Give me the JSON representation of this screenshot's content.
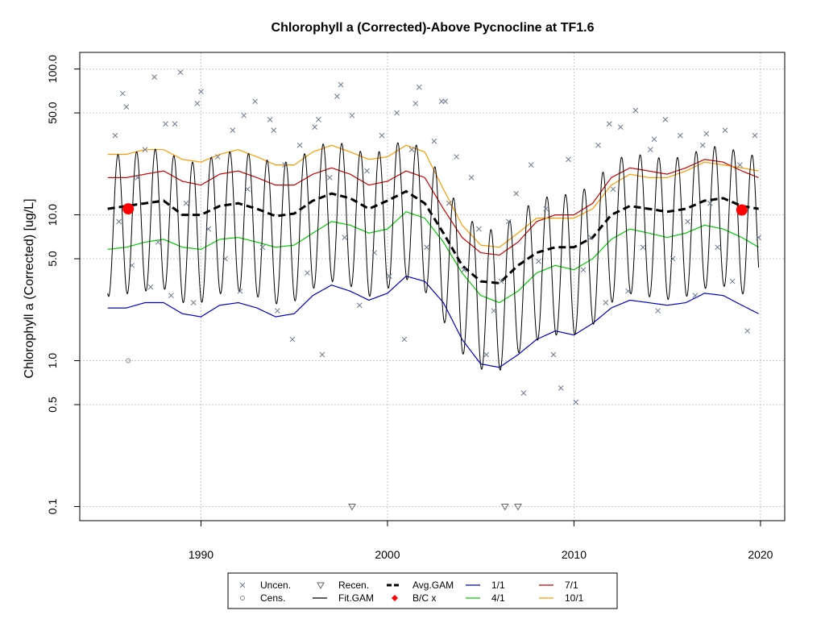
{
  "chart_data": {
    "type": "line",
    "title": "Chlorophyll a (Corrected)-Above Pycnocline at TF1.6",
    "xlabel": "",
    "ylabel": "Chlorophyll a (Corrected) [ug/L]",
    "y_scale": "log",
    "xlim": [
      1983.5,
      2021.3
    ],
    "ylim": [
      0.08,
      130
    ],
    "x_ticks": [
      {
        "value": 1990,
        "label": "1990"
      },
      {
        "value": 2000,
        "label": "2000"
      },
      {
        "value": 2010,
        "label": "2010"
      },
      {
        "value": 2020,
        "label": "2020"
      }
    ],
    "y_ticks": [
      {
        "value": 0.1,
        "label": "0.1"
      },
      {
        "value": 0.5,
        "label": "0.5"
      },
      {
        "value": 1.0,
        "label": "1.0"
      },
      {
        "value": 5.0,
        "label": "5.0"
      },
      {
        "value": 10.0,
        "label": "10.0"
      },
      {
        "value": 50.0,
        "label": "50.0"
      },
      {
        "value": 100.0,
        "label": "100.0"
      }
    ],
    "grid": true,
    "legend_position": "bottom",
    "series": [
      {
        "name": "Avg.GAM",
        "style": "dashed",
        "color": "#000000",
        "x": [
          1985,
          1986,
          1987,
          1988,
          1989,
          1990,
          1991,
          1992,
          1993,
          1994,
          1995,
          1996,
          1997,
          1998,
          1999,
          2000,
          2001,
          2002,
          2003,
          2004,
          2005,
          2006,
          2007,
          2008,
          2009,
          2010,
          2011,
          2012,
          2013,
          2014,
          2015,
          2016,
          2017,
          2018,
          2019,
          2019.9
        ],
        "y": [
          11,
          11.5,
          12,
          12.5,
          10,
          10,
          11.5,
          12,
          11,
          9.8,
          10.2,
          12.5,
          14,
          13,
          11,
          12.5,
          14.5,
          12,
          7.5,
          4.5,
          3.5,
          3.4,
          4.5,
          5.5,
          6,
          6,
          7,
          10,
          11.5,
          11,
          10.5,
          11,
          12.5,
          13,
          11.5,
          11
        ]
      },
      {
        "name": "1/1",
        "style": "solid",
        "color": "#0000cc",
        "x": [
          1985,
          1986,
          1987,
          1988,
          1989,
          1990,
          1991,
          1992,
          1993,
          1994,
          1995,
          1996,
          1997,
          1998,
          1999,
          2000,
          2001,
          2002,
          2003,
          2004,
          2005,
          2006,
          2007,
          2008,
          2009,
          2010,
          2011,
          2012,
          2013,
          2014,
          2015,
          2016,
          2017,
          2018,
          2019,
          2019.9
        ],
        "y": [
          2.3,
          2.3,
          2.5,
          2.5,
          2.1,
          2.0,
          2.4,
          2.5,
          2.3,
          2.0,
          2.1,
          2.8,
          3.3,
          3.0,
          2.6,
          2.9,
          3.8,
          3.5,
          2.5,
          1.4,
          0.95,
          0.9,
          1.1,
          1.4,
          1.6,
          1.5,
          1.8,
          2.3,
          2.6,
          2.5,
          2.4,
          2.5,
          2.9,
          2.8,
          2.4,
          2.1
        ]
      },
      {
        "name": "4/1",
        "style": "solid",
        "color": "#00cc00",
        "x": [
          1985,
          1986,
          1987,
          1988,
          1989,
          1990,
          1991,
          1992,
          1993,
          1994,
          1995,
          1996,
          1997,
          1998,
          1999,
          2000,
          2001,
          2002,
          2003,
          2004,
          2005,
          2006,
          2007,
          2008,
          2009,
          2010,
          2011,
          2012,
          2013,
          2014,
          2015,
          2016,
          2017,
          2018,
          2019,
          2019.9
        ],
        "y": [
          5.8,
          6.0,
          6.5,
          6.8,
          6.0,
          5.8,
          6.8,
          7.0,
          6.5,
          6.0,
          6.2,
          7.5,
          9.0,
          8.5,
          7.5,
          8.0,
          10.5,
          9.5,
          6.5,
          4.0,
          2.8,
          2.5,
          3.0,
          4.0,
          4.5,
          4.2,
          5.0,
          6.8,
          8.0,
          7.5,
          7.0,
          7.5,
          8.5,
          8.0,
          7.0,
          6.0
        ]
      },
      {
        "name": "7/1",
        "style": "solid",
        "color": "#cc0000",
        "x": [
          1985,
          1986,
          1987,
          1988,
          1989,
          1990,
          1991,
          1992,
          1993,
          1994,
          1995,
          1996,
          1997,
          1998,
          1999,
          2000,
          2001,
          2002,
          2003,
          2004,
          2005,
          2006,
          2007,
          2008,
          2009,
          2010,
          2011,
          2012,
          2013,
          2014,
          2015,
          2016,
          2017,
          2018,
          2019,
          2019.9
        ],
        "y": [
          18,
          18,
          19,
          20,
          17,
          16,
          19,
          20,
          18,
          16,
          16,
          19,
          21,
          19,
          16,
          17,
          20,
          18,
          11,
          7,
          5.5,
          5.3,
          6.5,
          9,
          10,
          10,
          12,
          18,
          21,
          20,
          19,
          21,
          24,
          23,
          20,
          18
        ]
      },
      {
        "name": "10/1",
        "style": "solid",
        "color": "#ff9900",
        "x": [
          1985,
          1986,
          1987,
          1988,
          1989,
          1990,
          1991,
          1992,
          1993,
          1994,
          1995,
          1996,
          1997,
          1998,
          1999,
          2000,
          2001,
          2002,
          2003,
          2004,
          2005,
          2006,
          2007,
          2008,
          2009,
          2010,
          2011,
          2012,
          2013,
          2014,
          2015,
          2016,
          2017,
          2018,
          2019,
          2019.9
        ],
        "y": [
          26,
          26,
          28,
          28,
          24,
          23,
          26,
          28,
          25,
          22,
          22,
          27,
          30,
          27,
          24,
          25,
          30,
          27,
          15,
          8.5,
          6.2,
          6.0,
          7.5,
          9.5,
          9.5,
          9.5,
          11,
          16,
          19,
          18,
          18,
          20,
          23,
          22,
          21,
          20
        ]
      },
      {
        "name": "Fit.GAM",
        "style": "solid",
        "color": "#000000",
        "seasonal": true,
        "trough_multiplier": 0.25,
        "peak_multiplier": 2.3
      }
    ],
    "markers": [
      {
        "name": "B/C x",
        "color": "#ff0000",
        "points": [
          {
            "x": 1986.1,
            "y": 11.0
          },
          {
            "x": 2019.0,
            "y": 10.8
          }
        ]
      }
    ],
    "points": {
      "uncensored": {
        "name": "Uncen.",
        "color": "#6b7a8f",
        "x": [
          1985.4,
          1985.6,
          1985.8,
          1986.0,
          1986.3,
          1986.6,
          1987.0,
          1987.3,
          1987.7,
          1988.1,
          1988.4,
          1988.9,
          1989.2,
          1989.6,
          1990.0,
          1990.4,
          1990.9,
          1991.3,
          1991.7,
          1992.1,
          1992.5,
          1992.9,
          1993.3,
          1993.7,
          1994.1,
          1994.5,
          1994.9,
          1995.3,
          1995.7,
          1996.1,
          1996.5,
          1996.9,
          1997.3,
          1997.7,
          1998.1,
          1998.5,
          1998.9,
          1999.3,
          1999.7,
          2000.1,
          2000.5,
          2000.9,
          2001.3,
          2001.7,
          2002.1,
          2002.5,
          2002.9,
          2003.3,
          2003.7,
          2004.1,
          2004.5,
          2004.9,
          2005.3,
          2005.7,
          2006.1,
          2006.5,
          2006.9,
          2007.3,
          2007.7,
          2008.1,
          2008.5,
          2008.9,
          2009.3,
          2009.7,
          2010.1,
          2010.5,
          2010.9,
          2011.3,
          2011.7,
          2012.1,
          2012.5,
          2012.9,
          2013.3,
          2013.7,
          2014.1,
          2014.5,
          2014.9,
          2015.3,
          2015.7,
          2016.1,
          2016.5,
          2016.9,
          2017.3,
          2017.7,
          2018.1,
          2018.5,
          2018.9,
          2019.3,
          2019.7,
          2019.9,
          1987.5,
          1988.6,
          1989.8,
          1992.3,
          1993.9,
          1996.3,
          1997.5,
          2001.5,
          2003.1,
          2011.9,
          2014.3,
          2017.1
        ],
        "y": [
          35,
          9,
          68,
          55,
          4.5,
          18,
          28,
          3.2,
          6.5,
          42,
          2.8,
          95,
          12,
          2.5,
          70,
          8,
          25,
          5,
          38,
          3,
          15,
          60,
          6,
          45,
          2.2,
          22,
          1.4,
          30,
          4,
          40,
          1.1,
          18,
          65,
          7,
          48,
          2.4,
          20,
          5.5,
          35,
          3.8,
          50,
          1.4,
          28,
          75,
          6,
          32,
          60,
          12,
          25,
          4.2,
          18,
          8,
          1.1,
          2.2,
          3.5,
          9,
          14,
          0.6,
          22,
          4.8,
          11,
          1.1,
          0.65,
          24,
          0.52,
          4.2,
          7,
          30,
          2.5,
          15,
          40,
          3,
          52,
          6,
          28,
          2.2,
          45,
          5,
          35,
          9,
          2.8,
          30,
          12,
          6,
          38,
          3.5,
          22,
          1.6,
          35,
          7,
          88,
          42,
          58,
          48,
          38,
          45,
          78,
          58,
          60,
          42,
          33,
          36
        ]
      },
      "censored": {
        "name": "Cens.",
        "x": [
          1986.1
        ],
        "y": [
          1.0
        ]
      },
      "recensored": {
        "name": "Recen.",
        "x": [
          1998.1,
          2006.3,
          2007.0
        ],
        "y": [
          0.1,
          0.1,
          0.1
        ]
      }
    }
  },
  "legend": {
    "items": [
      {
        "key": "uncen",
        "label": "Uncen."
      },
      {
        "key": "recen",
        "label": "Recen."
      },
      {
        "key": "avg",
        "label": "Avg.GAM"
      },
      {
        "key": "s1",
        "label": "1/1"
      },
      {
        "key": "s7",
        "label": "7/1"
      },
      {
        "key": "cens",
        "label": "Cens."
      },
      {
        "key": "fit",
        "label": "Fit.GAM"
      },
      {
        "key": "bc",
        "label": "B/C x"
      },
      {
        "key": "s4",
        "label": "4/1"
      },
      {
        "key": "s10",
        "label": "10/1"
      }
    ]
  }
}
